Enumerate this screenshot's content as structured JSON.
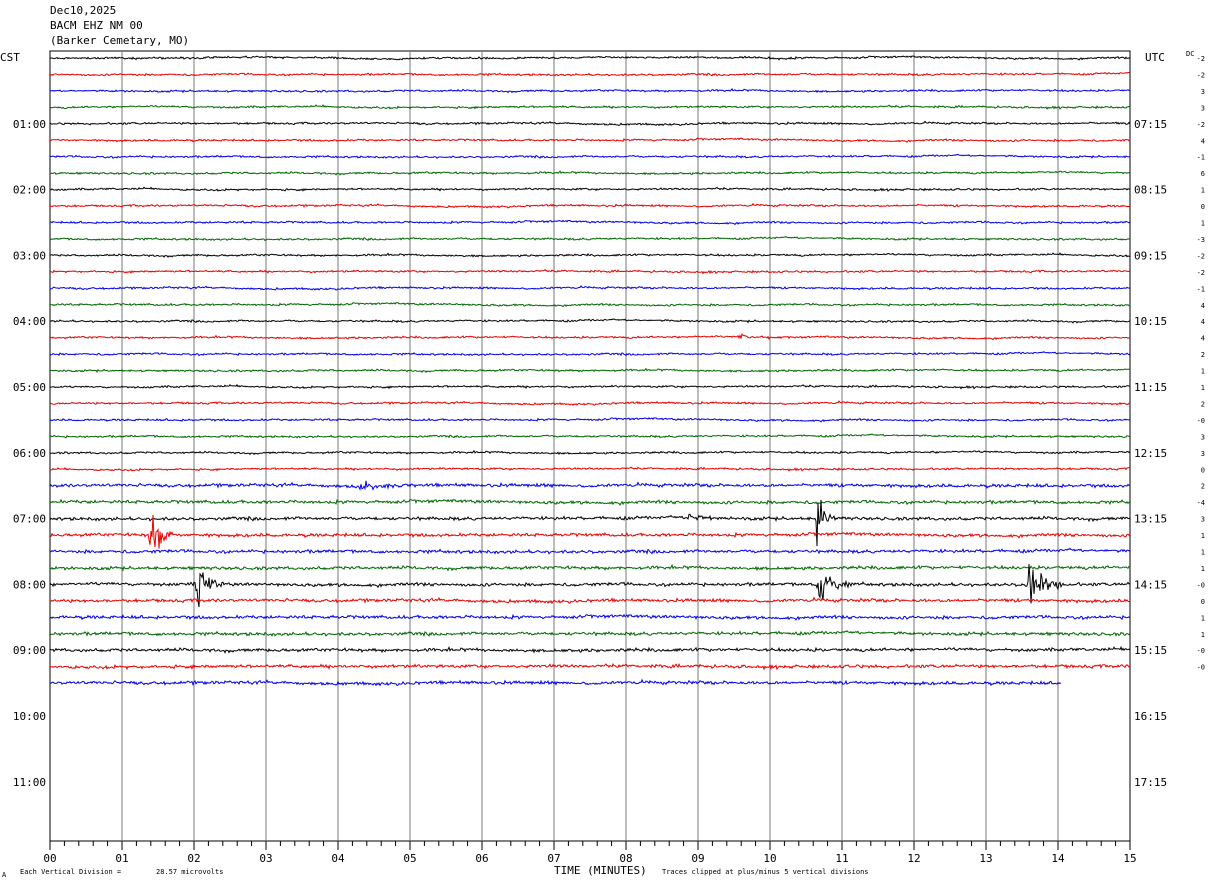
{
  "header": {
    "date": "Dec10,2025",
    "station": "BACM EHZ NM 00",
    "location": "(Barker Cemetary, MO)"
  },
  "left_axis_label": "CST",
  "right_axis_label": "UTC",
  "dc_label": "DC",
  "footer": {
    "scale_prefix": "Each Vertical Division =",
    "scale_value": "28.57 microvolts",
    "clip_note": "Traces clipped at plus/minus 5 vertical divisions",
    "corner_mark": "A"
  },
  "colors": [
    "#000000",
    "#e60000",
    "#0000e6",
    "#006600"
  ],
  "chart_data": {
    "type": "line",
    "title": "BACM EHZ NM 00",
    "xlabel": "TIME (MINUTES)",
    "ylabel": "",
    "x_ticks": [
      "00",
      "01",
      "02",
      "03",
      "04",
      "05",
      "06",
      "07",
      "08",
      "09",
      "10",
      "11",
      "12",
      "13",
      "14",
      "15"
    ],
    "xlim": [
      0,
      15
    ],
    "left_hour_labels": [
      "01:00",
      "02:00",
      "03:00",
      "04:00",
      "05:00",
      "06:00",
      "07:00",
      "08:00",
      "09:00",
      "10:00",
      "11:00"
    ],
    "right_hour_labels": [
      "07:15",
      "08:15",
      "09:15",
      "10:15",
      "11:15",
      "12:15",
      "13:15",
      "14:15",
      "15:15",
      "16:15",
      "17:15"
    ],
    "rows_per_hour": 4,
    "total_rows": 48,
    "recorded_rows": 39,
    "last_row_end_minute": 14.05,
    "dc_offsets": [
      "-2",
      "-2",
      "3",
      "3",
      "-2",
      "4",
      "-1",
      "6",
      "1",
      "0",
      "1",
      "-3",
      "-2",
      "-2",
      "-1",
      "4",
      "4",
      "4",
      "2",
      "1",
      "1",
      "2",
      "-0",
      "3",
      "3",
      "0",
      "2",
      "-4",
      "3",
      "1",
      "1",
      "1",
      "-0",
      "0",
      "1",
      "1",
      "-0",
      "-0"
    ],
    "events": [
      {
        "row": 29,
        "minute": 1.4,
        "width": 0.3,
        "amplitude": 5,
        "label": "local event"
      },
      {
        "row": 32,
        "minute": 2.05,
        "width": 0.3,
        "amplitude": 5,
        "label": "local event"
      },
      {
        "row": 28,
        "minute": 10.65,
        "width": 0.25,
        "amplitude": 5,
        "label": "local event"
      },
      {
        "row": 32,
        "minute": 10.7,
        "width": 0.35,
        "amplitude": 5,
        "label": "local event"
      },
      {
        "row": 32,
        "minute": 13.6,
        "width": 0.4,
        "amplitude": 5,
        "label": "local event"
      },
      {
        "row": 26,
        "minute": 4.3,
        "width": 0.6,
        "amplitude": 1.2,
        "label": "noise burst"
      },
      {
        "row": 28,
        "minute": 8.9,
        "width": 0.6,
        "amplitude": 1.0,
        "label": "noise burst"
      },
      {
        "row": 17,
        "minute": 9.6,
        "width": 0.5,
        "amplitude": 1.0,
        "label": "noise burst"
      }
    ]
  }
}
